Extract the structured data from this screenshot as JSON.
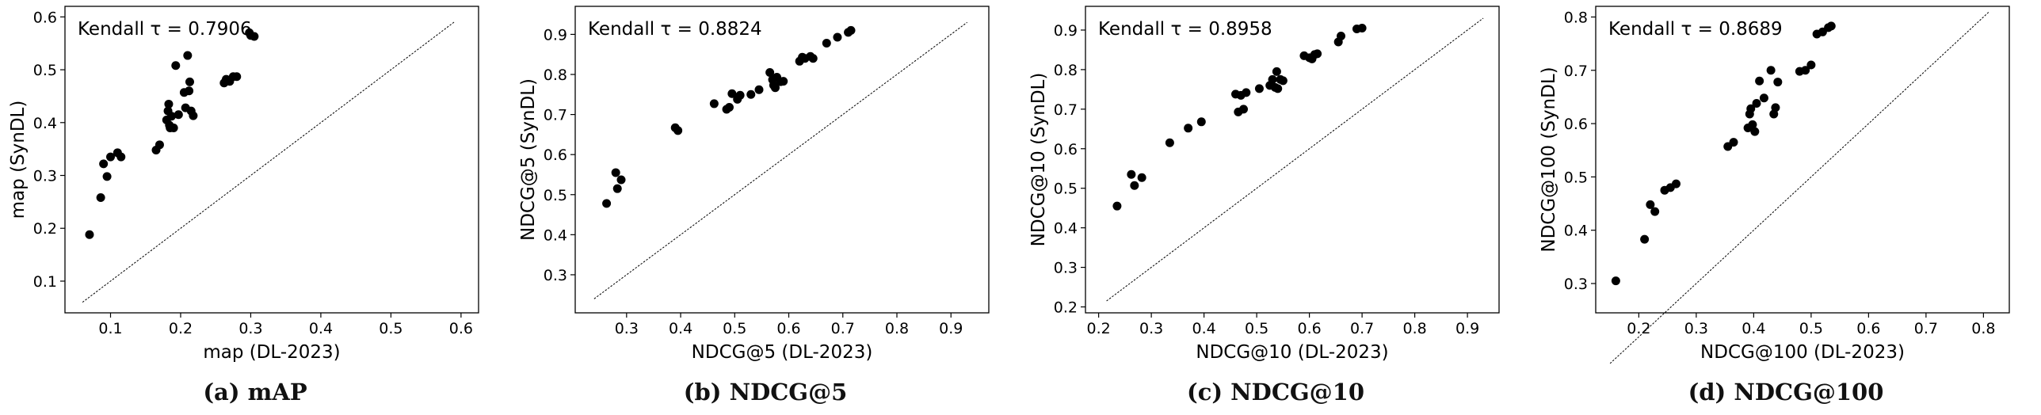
{
  "figure": {
    "captions": [
      "(a) mAP",
      "(b) NDCG@5",
      "(c) NDCG@10",
      "(d) NDCG@100"
    ]
  },
  "chart_data": [
    {
      "type": "scatter",
      "title": "",
      "annotation": "Kendall τ = 0.7906",
      "xlabel": "map (DL-2023)",
      "ylabel": "map (SynDL)",
      "xlim": [
        0.035,
        0.625
      ],
      "ylim": [
        0.04,
        0.62
      ],
      "xticks": [
        0.1,
        0.2,
        0.3,
        0.4,
        0.5,
        0.6
      ],
      "yticks": [
        0.1,
        0.2,
        0.3,
        0.4,
        0.5,
        0.6
      ],
      "tick_labels_x": [
        "0.1",
        "0.2",
        "0.3",
        "0.4",
        "0.5",
        "0.6"
      ],
      "tick_labels_y": [
        "0.1",
        "0.2",
        "0.3",
        "0.4",
        "0.5",
        "0.6"
      ],
      "diagonal": [
        [
          0.06,
          0.06
        ],
        [
          0.59,
          0.59
        ]
      ],
      "grid": false,
      "x": [
        0.07,
        0.086,
        0.09,
        0.095,
        0.1,
        0.11,
        0.115,
        0.165,
        0.17,
        0.18,
        0.182,
        0.183,
        0.184,
        0.185,
        0.187,
        0.19,
        0.193,
        0.197,
        0.205,
        0.207,
        0.21,
        0.212,
        0.213,
        0.215,
        0.218,
        0.262,
        0.265,
        0.27,
        0.275,
        0.28,
        0.298,
        0.3,
        0.305
      ],
      "y": [
        0.188,
        0.258,
        0.322,
        0.298,
        0.335,
        0.343,
        0.335,
        0.348,
        0.358,
        0.405,
        0.422,
        0.435,
        0.395,
        0.39,
        0.412,
        0.39,
        0.508,
        0.415,
        0.457,
        0.428,
        0.527,
        0.46,
        0.477,
        0.422,
        0.413,
        0.475,
        0.482,
        0.478,
        0.487,
        0.487,
        0.57,
        0.565,
        0.563
      ]
    },
    {
      "type": "scatter",
      "title": "",
      "annotation": "Kendall τ = 0.8824",
      "xlabel": "NDCG@5 (DL-2023)",
      "ylabel": "NDCG@5 (SynDL)",
      "xlim": [
        0.205,
        0.97
      ],
      "ylim": [
        0.205,
        0.97
      ],
      "xticks": [
        0.3,
        0.4,
        0.5,
        0.6,
        0.7,
        0.8,
        0.9
      ],
      "yticks": [
        0.3,
        0.4,
        0.5,
        0.6,
        0.7,
        0.8,
        0.9
      ],
      "tick_labels_x": [
        "0.3",
        "0.4",
        "0.5",
        "0.6",
        "0.7",
        "0.8",
        "0.9"
      ],
      "tick_labels_y": [
        "0.3",
        "0.4",
        "0.5",
        "0.6",
        "0.7",
        "0.8",
        "0.9"
      ],
      "diagonal": [
        [
          0.24,
          0.24
        ],
        [
          0.93,
          0.93
        ]
      ],
      "grid": false,
      "x": [
        0.263,
        0.28,
        0.283,
        0.29,
        0.39,
        0.395,
        0.462,
        0.485,
        0.49,
        0.495,
        0.505,
        0.51,
        0.53,
        0.545,
        0.565,
        0.57,
        0.572,
        0.575,
        0.578,
        0.585,
        0.59,
        0.62,
        0.625,
        0.63,
        0.64,
        0.645,
        0.67,
        0.69,
        0.71,
        0.715
      ],
      "y": [
        0.478,
        0.555,
        0.515,
        0.537,
        0.667,
        0.66,
        0.727,
        0.713,
        0.718,
        0.752,
        0.738,
        0.748,
        0.75,
        0.762,
        0.805,
        0.787,
        0.773,
        0.767,
        0.793,
        0.782,
        0.783,
        0.833,
        0.843,
        0.84,
        0.845,
        0.84,
        0.878,
        0.893,
        0.905,
        0.91
      ]
    },
    {
      "type": "scatter",
      "title": "",
      "annotation": "Kendall τ = 0.8958",
      "xlabel": "NDCG@10 (DL-2023)",
      "ylabel": "NDCG@10 (SynDL)",
      "xlim": [
        0.175,
        0.96
      ],
      "ylim": [
        0.185,
        0.96
      ],
      "xticks": [
        0.2,
        0.3,
        0.4,
        0.5,
        0.6,
        0.7,
        0.8,
        0.9
      ],
      "yticks": [
        0.2,
        0.3,
        0.4,
        0.5,
        0.6,
        0.7,
        0.8,
        0.9
      ],
      "tick_labels_x": [
        "0.2",
        "0.3",
        "0.4",
        "0.5",
        "0.6",
        "0.7",
        "0.8",
        "0.9"
      ],
      "tick_labels_y": [
        "0.2",
        "0.3",
        "0.4",
        "0.5",
        "0.6",
        "0.7",
        "0.8",
        "0.9"
      ],
      "diagonal": [
        [
          0.215,
          0.215
        ],
        [
          0.93,
          0.93
        ]
      ],
      "grid": false,
      "x": [
        0.235,
        0.262,
        0.268,
        0.282,
        0.335,
        0.37,
        0.395,
        0.46,
        0.465,
        0.47,
        0.475,
        0.48,
        0.505,
        0.525,
        0.53,
        0.535,
        0.538,
        0.54,
        0.545,
        0.55,
        0.59,
        0.6,
        0.605,
        0.61,
        0.615,
        0.655,
        0.66,
        0.69,
        0.7
      ],
      "y": [
        0.455,
        0.535,
        0.507,
        0.527,
        0.615,
        0.652,
        0.668,
        0.738,
        0.693,
        0.735,
        0.7,
        0.742,
        0.752,
        0.76,
        0.775,
        0.755,
        0.795,
        0.752,
        0.775,
        0.772,
        0.835,
        0.83,
        0.827,
        0.838,
        0.84,
        0.87,
        0.885,
        0.903,
        0.905
      ]
    },
    {
      "type": "scatter",
      "title": "",
      "annotation": "Kendall τ = 0.8689",
      "xlabel": "NDCG@100 (DL-2023)",
      "ylabel": "NDCG@100 (SynDL)",
      "xlim": [
        0.125,
        0.845
      ],
      "ylim": [
        0.245,
        0.82
      ],
      "xticks": [
        0.2,
        0.3,
        0.4,
        0.5,
        0.6,
        0.7,
        0.8
      ],
      "yticks": [
        0.3,
        0.4,
        0.5,
        0.6,
        0.7,
        0.8
      ],
      "tick_labels_x": [
        "0.2",
        "0.3",
        "0.4",
        "0.5",
        "0.6",
        "0.7",
        "0.8"
      ],
      "tick_labels_y": [
        "0.3",
        "0.4",
        "0.5",
        "0.6",
        "0.7",
        "0.8"
      ],
      "diagonal": [
        [
          0.15,
          0.15
        ],
        [
          0.81,
          0.81
        ]
      ],
      "grid": false,
      "x": [
        0.16,
        0.21,
        0.22,
        0.228,
        0.245,
        0.255,
        0.265,
        0.355,
        0.365,
        0.39,
        0.393,
        0.395,
        0.398,
        0.402,
        0.405,
        0.41,
        0.418,
        0.43,
        0.435,
        0.438,
        0.442,
        0.48,
        0.49,
        0.5,
        0.51,
        0.52,
        0.53,
        0.535
      ],
      "y": [
        0.305,
        0.383,
        0.448,
        0.435,
        0.475,
        0.48,
        0.487,
        0.557,
        0.565,
        0.592,
        0.618,
        0.628,
        0.598,
        0.585,
        0.638,
        0.68,
        0.648,
        0.7,
        0.618,
        0.63,
        0.678,
        0.698,
        0.7,
        0.71,
        0.768,
        0.772,
        0.78,
        0.783
      ]
    }
  ]
}
